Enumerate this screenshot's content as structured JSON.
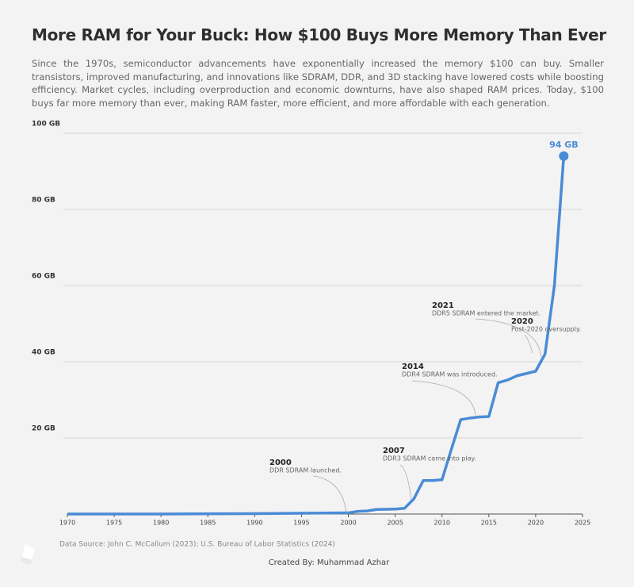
{
  "chart_data": {
    "type": "line",
    "title": "More RAM for Your Buck: How $100 Buys More Memory Than Ever",
    "subtitle": "Since the 1970s, semiconductor advancements have exponentially increased the memory $100 can buy. Smaller transistors, improved manufacturing, and innovations like SDRAM, DDR, and 3D stacking have lowered costs while boosting efficiency. Market cycles, including overproduction and economic downturns, have also shaped RAM prices. Today, $100 buys far more memory than ever, making RAM faster, more efficient, and more affordable with each generation.",
    "x": [
      1970,
      1980,
      1990,
      1995,
      2000,
      2001,
      2002,
      2003,
      2005,
      2006,
      2007,
      2008,
      2009,
      2010,
      2011,
      2012,
      2013,
      2014,
      2015,
      2016,
      2017,
      2018,
      2019,
      2020,
      2021,
      2022,
      2023
    ],
    "values": [
      0,
      0,
      0.1,
      0.2,
      0.3,
      0.7,
      0.8,
      1.2,
      1.3,
      1.5,
      4,
      8.8,
      8.8,
      9,
      17,
      24.8,
      25.2,
      25.5,
      25.6,
      34.5,
      35.2,
      36.3,
      36.9,
      37.5,
      42,
      60,
      94
    ],
    "value_labels": [
      null,
      null,
      null,
      null,
      null,
      null,
      null,
      null,
      null,
      null,
      null,
      null,
      null,
      null,
      null,
      null,
      null,
      null,
      null,
      null,
      null,
      null,
      null,
      null,
      null,
      null,
      "94 GB"
    ],
    "color": "#4a8bd6",
    "xlim": [
      1970,
      2025
    ],
    "xticks": [
      1970,
      1975,
      1980,
      1985,
      1990,
      1995,
      2000,
      2005,
      2010,
      2015,
      2020,
      2025
    ],
    "ylim": [
      0,
      100
    ],
    "yticks": [
      {
        "value": 20,
        "label": "20 GB"
      },
      {
        "value": 40,
        "label": "40 GB"
      },
      {
        "value": 60,
        "label": "60 GB"
      },
      {
        "value": 80,
        "label": "80 GB"
      },
      {
        "value": 100,
        "label": "100 GB"
      }
    ],
    "grid": true,
    "annotations": [
      {
        "label": "2000",
        "text": "DDR SDRAM launched."
      },
      {
        "label": "2007",
        "text": "DDR3 SDRAM came into play."
      },
      {
        "label": "2014",
        "text": "DDR4 SDRAM was introduced."
      },
      {
        "label": "2021",
        "text": "DDR5 SDRAM entered the market."
      },
      {
        "label": "2020",
        "text": "Post-2020 oversupply."
      }
    ],
    "source": "Data Source: John C. McCallum (2023); U.S. Bureau of Labor Statistics (2024)",
    "credit": "Created By: Muhammad Azhar"
  }
}
